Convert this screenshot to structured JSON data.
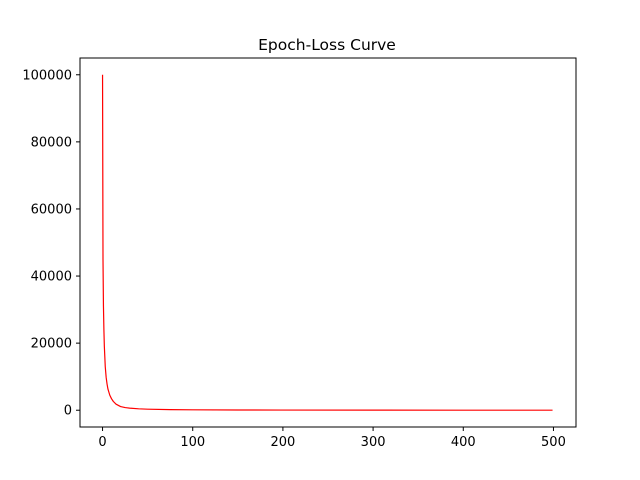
{
  "chart_data": {
    "type": "line",
    "title": "Epoch-Loss Curve",
    "xlabel": "",
    "ylabel": "",
    "xlim": [
      -25,
      525
    ],
    "ylim": [
      -5000,
      105000
    ],
    "x_ticks": [
      0,
      100,
      200,
      300,
      400,
      500
    ],
    "y_ticks": [
      0,
      20000,
      40000,
      60000,
      80000,
      100000
    ],
    "grid": false,
    "legend": "none",
    "series": [
      {
        "color": "#ff0000",
        "x": [
          0,
          0.5,
          1,
          1.5,
          2,
          3,
          4,
          5,
          6,
          8,
          10,
          12,
          15,
          20,
          25,
          30,
          40,
          50,
          75,
          100,
          150,
          200,
          300,
          400,
          499
        ],
        "y": [
          100000,
          45000,
          31000,
          24000,
          19000,
          13000,
          9800,
          7800,
          6300,
          4500,
          3400,
          2600,
          1800,
          1100,
          800,
          620,
          420,
          310,
          180,
          120,
          70,
          45,
          25,
          15,
          10
        ]
      }
    ]
  }
}
